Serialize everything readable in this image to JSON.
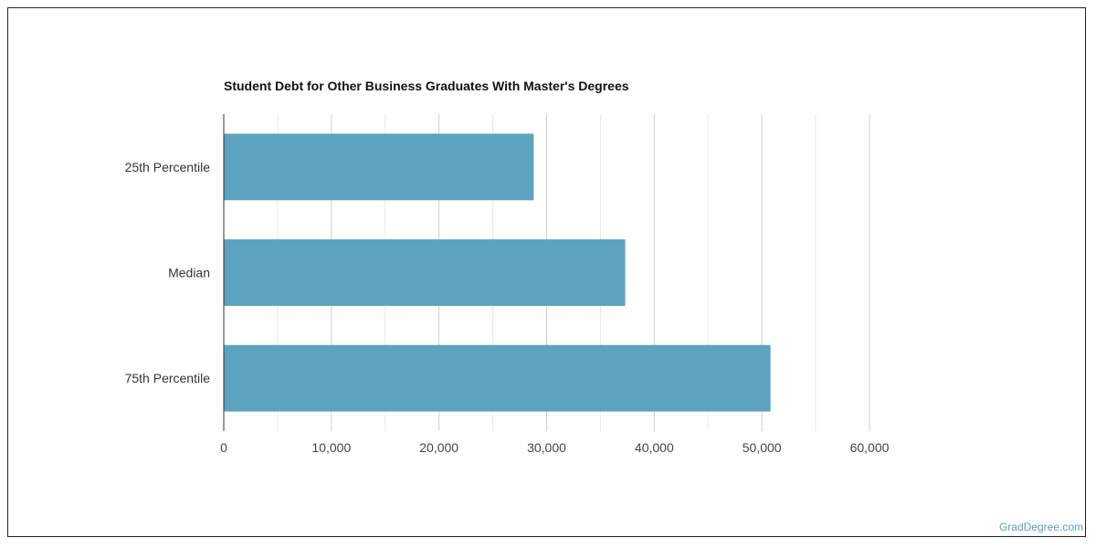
{
  "chart_data": {
    "type": "bar",
    "orientation": "horizontal",
    "title": "Student Debt for Other Business Graduates With Master's Degrees",
    "categories": [
      "25th Percentile",
      "Median",
      "75th Percentile"
    ],
    "values": [
      28800,
      37300,
      50800
    ],
    "xlim": [
      0,
      60000
    ],
    "x_ticks": [
      0,
      10000,
      20000,
      30000,
      40000,
      50000,
      60000
    ],
    "x_tick_labels": [
      "0",
      "10,000",
      "20,000",
      "30,000",
      "40,000",
      "50,000",
      "60,000"
    ],
    "xlabel": "",
    "ylabel": "",
    "grid": true,
    "bar_color": "#5ca3bf"
  },
  "watermark": "GradDegree.com"
}
